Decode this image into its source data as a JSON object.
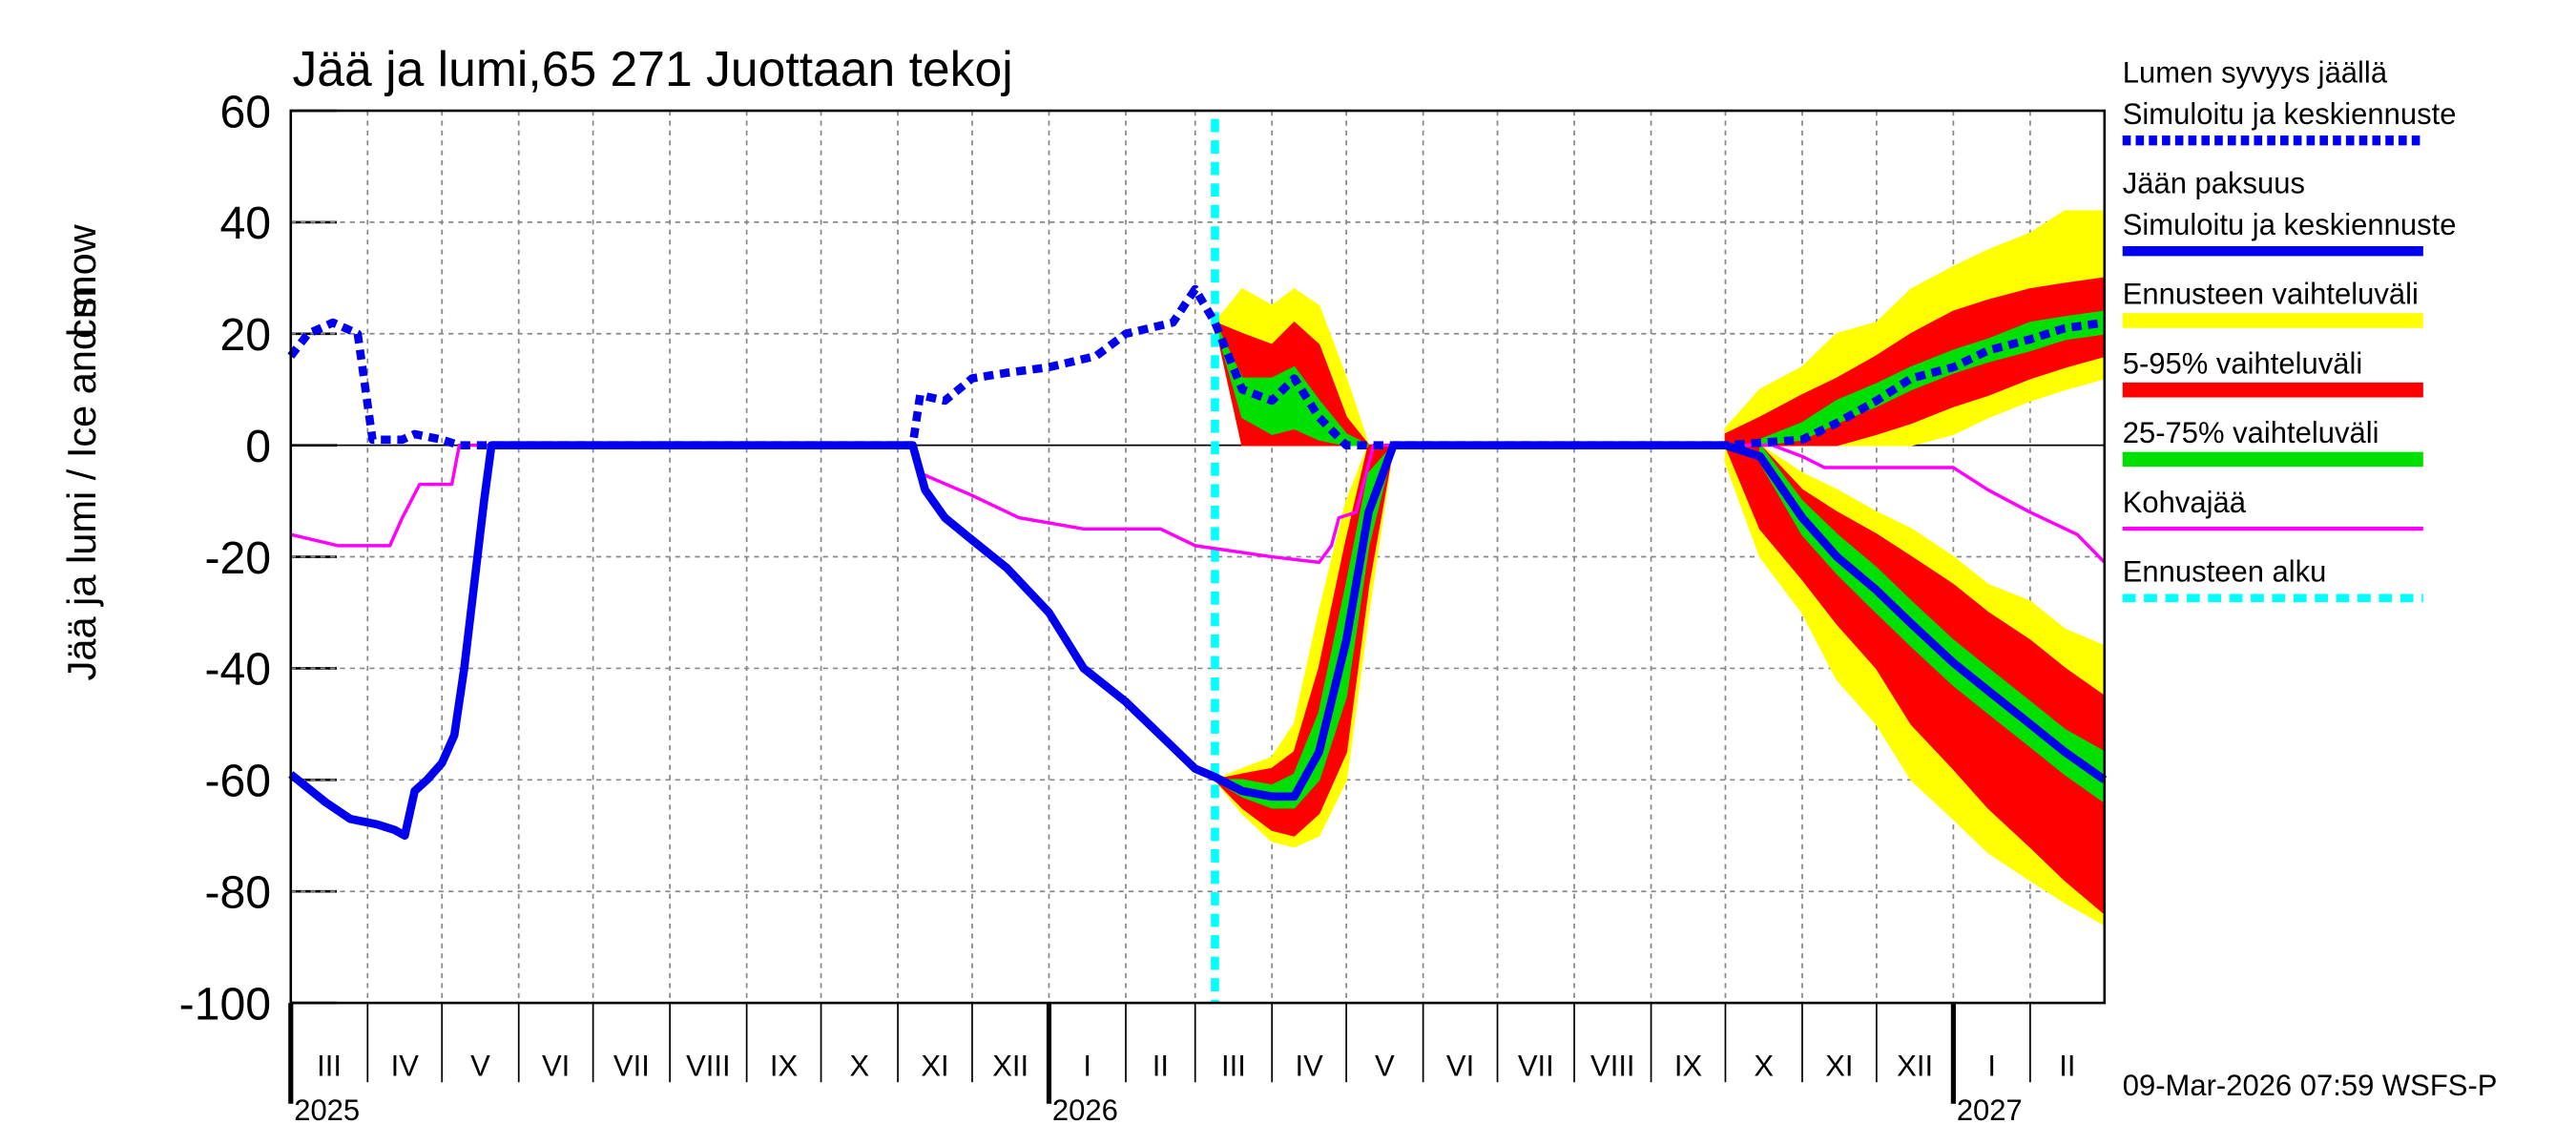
{
  "chart_data": {
    "type": "line",
    "title": "Jää ja lumi,65 271 Juottaan tekoj",
    "ylabel": "Jää ja lumi / Ice and snow",
    "yunit": "cm",
    "footer": "09-Mar-2026 07:59 WSFS-P",
    "ylim": [
      -100,
      60
    ],
    "yticks": [
      60,
      40,
      20,
      0,
      -20,
      -40,
      -60,
      -80,
      -100
    ],
    "xlim": [
      "2025-03-01",
      "2027-03-03"
    ],
    "grid": true,
    "xticks": [
      {
        "value": "2025-03-01",
        "label": "III"
      },
      {
        "value": "2025-04-01",
        "label": "IV"
      },
      {
        "value": "2025-05-01",
        "label": "V"
      },
      {
        "value": "2025-06-01",
        "label": "VI"
      },
      {
        "value": "2025-07-01",
        "label": "VII"
      },
      {
        "value": "2025-08-01",
        "label": "VIII"
      },
      {
        "value": "2025-09-01",
        "label": "IX"
      },
      {
        "value": "2025-10-01",
        "label": "X"
      },
      {
        "value": "2025-11-01",
        "label": "XI"
      },
      {
        "value": "2025-12-01",
        "label": "XII"
      },
      {
        "value": "2026-01-01",
        "label": "I"
      },
      {
        "value": "2026-02-01",
        "label": "II"
      },
      {
        "value": "2026-03-01",
        "label": "III"
      },
      {
        "value": "2026-04-01",
        "label": "IV"
      },
      {
        "value": "2026-05-01",
        "label": "V"
      },
      {
        "value": "2026-06-01",
        "label": "VI"
      },
      {
        "value": "2026-07-01",
        "label": "VII"
      },
      {
        "value": "2026-08-01",
        "label": "VIII"
      },
      {
        "value": "2026-09-01",
        "label": "IX"
      },
      {
        "value": "2026-10-01",
        "label": "X"
      },
      {
        "value": "2026-11-01",
        "label": "XI"
      },
      {
        "value": "2026-12-01",
        "label": "XII"
      },
      {
        "value": "2027-01-01",
        "label": "I"
      },
      {
        "value": "2027-02-01",
        "label": "II"
      }
    ],
    "years": [
      {
        "value": "2025-03-01",
        "label": "2025"
      },
      {
        "value": "2026-01-01",
        "label": "2026"
      },
      {
        "value": "2027-01-01",
        "label": "2027"
      }
    ],
    "forecast_start": {
      "label": "Ennusteen alku",
      "value": "2026-03-09",
      "color": "#00ffff"
    },
    "forecast_x": [
      "2026-03-09",
      "2026-03-20",
      "2026-04-01",
      "2026-04-10",
      "2026-04-20",
      "2026-05-01",
      "2026-05-10",
      "2026-05-20",
      "2026-06-01",
      "2026-09-15",
      "2026-10-01",
      "2026-10-15",
      "2026-11-01",
      "2026-11-15",
      "2026-12-01",
      "2026-12-15",
      "2027-01-01",
      "2027-01-15",
      "2027-02-01",
      "2027-02-15",
      "2027-03-03"
    ],
    "series": [
      {
        "name": "Lumen syvyys jäällä",
        "subname": "Simuloitu ja keskiennuste",
        "kind": "line",
        "dashed": true,
        "color": "#0000ee",
        "x": [
          "2025-03-01",
          "2025-03-08",
          "2025-03-18",
          "2025-03-28",
          "2025-04-03",
          "2025-04-15",
          "2025-04-20",
          "2025-05-01",
          "2025-05-08",
          "2025-11-07",
          "2025-11-10",
          "2025-11-20",
          "2025-12-01",
          "2025-12-15",
          "2026-01-01",
          "2026-01-20",
          "2026-02-01",
          "2026-02-20",
          "2026-03-01",
          "2026-03-09",
          "2026-03-20",
          "2026-04-01",
          "2026-04-10",
          "2026-04-20",
          "2026-05-01",
          "2026-10-01",
          "2026-11-01",
          "2026-11-15",
          "2026-12-01",
          "2026-12-15",
          "2027-01-01",
          "2027-01-15",
          "2027-02-01",
          "2027-02-15",
          "2027-03-03"
        ],
        "values": [
          16,
          20,
          22,
          20,
          1,
          1,
          2,
          1,
          0,
          0,
          9,
          8,
          12,
          13,
          14,
          16,
          20,
          22,
          28,
          22,
          10,
          8,
          12,
          5,
          0,
          0,
          1,
          4,
          8,
          12,
          14,
          17,
          19,
          21,
          22
        ]
      },
      {
        "name": "Jään paksuus",
        "subname": "Simuloitu ja keskiennuste",
        "kind": "line",
        "dashed": false,
        "color": "#0000ee",
        "x": [
          "2025-03-01",
          "2025-03-15",
          "2025-03-25",
          "2025-04-05",
          "2025-04-12",
          "2025-04-16",
          "2025-04-20",
          "2025-04-25",
          "2025-05-01",
          "2025-05-06",
          "2025-05-10",
          "2025-05-14",
          "2025-05-18",
          "2025-05-21",
          "2025-11-07",
          "2025-11-12",
          "2025-11-20",
          "2025-12-01",
          "2025-12-15",
          "2026-01-01",
          "2026-01-15",
          "2026-02-01",
          "2026-02-15",
          "2026-03-01",
          "2026-03-09",
          "2026-03-20",
          "2026-04-01",
          "2026-04-10",
          "2026-04-20",
          "2026-05-01",
          "2026-05-10",
          "2026-05-20",
          "2026-10-01",
          "2026-10-15",
          "2026-11-01",
          "2026-11-15",
          "2026-12-01",
          "2026-12-15",
          "2027-01-01",
          "2027-01-15",
          "2027-02-01",
          "2027-02-15",
          "2027-03-03"
        ],
        "values": [
          -59,
          -64,
          -67,
          -68,
          -69,
          -70,
          -62,
          -60,
          -57,
          -52,
          -40,
          -25,
          -10,
          0,
          0,
          -8,
          -13,
          -17,
          -22,
          -30,
          -40,
          -46,
          -52,
          -58,
          -59.5,
          -62,
          -63,
          -63,
          -55,
          -35,
          -12,
          0,
          0,
          -2,
          -13,
          -20,
          -26,
          -32,
          -39,
          -44,
          -50,
          -55,
          -60
        ]
      },
      {
        "name": "Ennusteen vaihteluväli",
        "kind": "band",
        "color": "#ffff00",
        "snow_low": [
          22,
          0,
          0,
          0,
          0,
          0,
          0,
          null,
          null,
          null,
          0,
          0,
          0,
          0,
          0,
          0,
          2,
          5,
          8,
          10,
          12
        ],
        "snow_high": [
          22,
          28,
          25,
          28,
          25,
          12,
          0,
          null,
          null,
          null,
          3,
          10,
          14,
          20,
          22,
          28,
          32,
          35,
          38,
          42,
          42
        ],
        "ice_low": [
          -60,
          -66,
          -71,
          -72,
          -70,
          -60,
          -30,
          0,
          null,
          null,
          -3,
          -20,
          -30,
          -42,
          -50,
          -60,
          -67,
          -73,
          -78,
          -82,
          -86
        ],
        "ice_high": [
          -60,
          -58,
          -56,
          -50,
          -30,
          -10,
          0,
          0,
          null,
          null,
          0,
          0,
          -5,
          -8,
          -12,
          -15,
          -20,
          -25,
          -28,
          -33,
          -36
        ]
      },
      {
        "name": "5-95% vaihteluväli",
        "kind": "band",
        "color": "#ff0000",
        "snow_low": [
          22,
          0,
          0,
          0,
          0,
          0,
          0,
          null,
          null,
          null,
          0,
          0,
          0,
          0,
          2,
          4,
          7,
          9,
          12,
          14,
          16
        ],
        "snow_high": [
          22,
          20,
          18,
          22,
          18,
          5,
          0,
          null,
          null,
          null,
          2,
          5,
          9,
          12,
          16,
          20,
          24,
          26,
          28,
          29,
          30
        ],
        "ice_low": [
          -60,
          -65,
          -69,
          -70,
          -66,
          -55,
          -25,
          0,
          null,
          null,
          0,
          -15,
          -24,
          -32,
          -40,
          -50,
          -58,
          -65,
          -72,
          -78,
          -84
        ],
        "ice_high": [
          -60,
          -59,
          -58,
          -55,
          -40,
          -17,
          0,
          0,
          null,
          null,
          0,
          0,
          -8,
          -12,
          -16,
          -20,
          -25,
          -30,
          -35,
          -40,
          -45
        ]
      },
      {
        "name": "25-75% vaihteluväli",
        "kind": "band",
        "color": "#00e000",
        "snow_low": [
          22,
          5,
          2,
          3,
          1,
          0,
          0,
          null,
          null,
          null,
          null,
          0,
          1,
          4,
          7,
          10,
          13,
          15,
          17,
          19,
          20
        ],
        "snow_high": [
          22,
          12,
          12,
          14,
          8,
          2,
          0,
          null,
          null,
          null,
          null,
          1,
          4,
          8,
          11,
          14,
          17,
          19,
          22,
          23,
          24
        ],
        "ice_low": [
          -60,
          -63,
          -65,
          -65,
          -60,
          -45,
          -18,
          0,
          null,
          null,
          null,
          -3,
          -16,
          -23,
          -30,
          -36,
          -43,
          -48,
          -54,
          -59,
          -64
        ],
        "ice_high": [
          -60,
          -60,
          -61,
          -59,
          -48,
          -25,
          -5,
          0,
          null,
          null,
          null,
          0,
          -10,
          -16,
          -22,
          -28,
          -35,
          -40,
          -46,
          -51,
          -55
        ]
      },
      {
        "name": "Kohvajää",
        "kind": "line",
        "dashed": false,
        "thin": true,
        "color": "#ff00ff",
        "x": [
          "2025-03-01",
          "2025-03-20",
          "2025-04-10",
          "2025-04-15",
          "2025-04-22",
          "2025-05-05",
          "2025-05-08",
          "2025-11-08",
          "2025-11-10",
          "2025-12-01",
          "2025-12-20",
          "2026-01-15",
          "2026-02-15",
          "2026-03-01",
          "2026-04-01",
          "2026-04-20",
          "2026-04-25",
          "2026-04-28",
          "2026-05-05",
          "2026-05-12",
          "2026-10-20",
          "2026-11-01",
          "2026-11-10",
          "2027-01-01",
          "2027-01-15",
          "2027-02-01",
          "2027-02-20",
          "2027-03-03"
        ],
        "values": [
          -16,
          -18,
          -18,
          -13,
          -7,
          -7,
          0,
          0,
          -5,
          -9,
          -13,
          -15,
          -15,
          -18,
          -20,
          -21,
          -18,
          -13,
          -12,
          0,
          0,
          -2,
          -4,
          -4,
          -8,
          -12,
          -16,
          -21
        ]
      }
    ]
  }
}
